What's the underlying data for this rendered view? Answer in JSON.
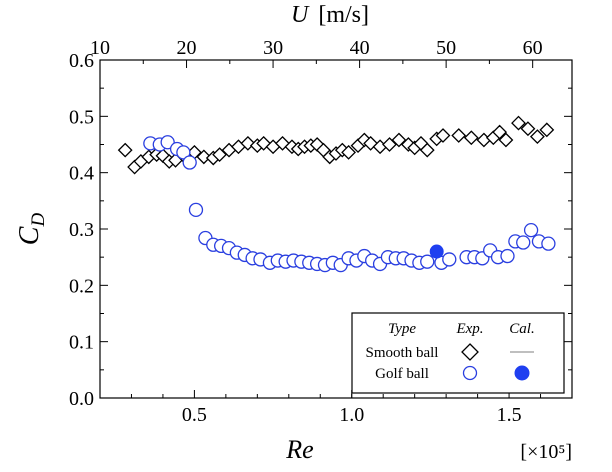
{
  "chart_data": {
    "type": "scatter",
    "xlabel": "Re",
    "x_multiplier_label": "[×10⁵]",
    "ylabel_main": "C",
    "ylabel_sub": "D",
    "top_axis_label_var": "U",
    "top_axis_label_unit": "[m/s]",
    "xlim": [
      0.2,
      1.7
    ],
    "ylim": [
      0.0,
      0.6
    ],
    "x_ticks": [
      "0.5",
      "1.0",
      "1.5"
    ],
    "x_tick_values": [
      0.5,
      1.0,
      1.5
    ],
    "y_ticks": [
      "0.0",
      "0.1",
      "0.2",
      "0.3",
      "0.4",
      "0.5",
      "0.6"
    ],
    "y_tick_values": [
      0.0,
      0.1,
      0.2,
      0.3,
      0.4,
      0.5,
      0.6
    ],
    "top_ticks": [
      "10",
      "20",
      "30",
      "40",
      "50",
      "60"
    ],
    "top_tick_positions_re": [
      0.2,
      0.475,
      0.75,
      1.025,
      1.3,
      1.575
    ],
    "grid": false,
    "legend": {
      "placement": "bottom-right",
      "header_type": "Type",
      "header_exp": "Exp.",
      "header_cal": "Cal.",
      "rows": [
        "Smooth ball",
        "Golf ball"
      ]
    },
    "series": [
      {
        "name": "Smooth ball",
        "kind": "experimental",
        "marker": "diamond-open",
        "color": "#000000",
        "points": [
          [
            0.28,
            0.44
          ],
          [
            0.31,
            0.41
          ],
          [
            0.33,
            0.42
          ],
          [
            0.355,
            0.428
          ],
          [
            0.38,
            0.432
          ],
          [
            0.4,
            0.43
          ],
          [
            0.42,
            0.42
          ],
          [
            0.44,
            0.422
          ],
          [
            0.47,
            0.428
          ],
          [
            0.5,
            0.436
          ],
          [
            0.53,
            0.428
          ],
          [
            0.56,
            0.426
          ],
          [
            0.58,
            0.432
          ],
          [
            0.61,
            0.44
          ],
          [
            0.64,
            0.446
          ],
          [
            0.67,
            0.452
          ],
          [
            0.7,
            0.448
          ],
          [
            0.72,
            0.452
          ],
          [
            0.75,
            0.446
          ],
          [
            0.78,
            0.452
          ],
          [
            0.81,
            0.446
          ],
          [
            0.83,
            0.442
          ],
          [
            0.85,
            0.446
          ],
          [
            0.87,
            0.448
          ],
          [
            0.89,
            0.45
          ],
          [
            0.91,
            0.44
          ],
          [
            0.93,
            0.428
          ],
          [
            0.95,
            0.434
          ],
          [
            0.97,
            0.44
          ],
          [
            0.99,
            0.436
          ],
          [
            1.02,
            0.448
          ],
          [
            1.04,
            0.458
          ],
          [
            1.06,
            0.452
          ],
          [
            1.09,
            0.446
          ],
          [
            1.12,
            0.45
          ],
          [
            1.15,
            0.458
          ],
          [
            1.18,
            0.45
          ],
          [
            1.2,
            0.444
          ],
          [
            1.22,
            0.452
          ],
          [
            1.24,
            0.44
          ],
          [
            1.27,
            0.46
          ],
          [
            1.29,
            0.466
          ],
          [
            1.34,
            0.466
          ],
          [
            1.38,
            0.462
          ],
          [
            1.42,
            0.458
          ],
          [
            1.45,
            0.462
          ],
          [
            1.47,
            0.472
          ],
          [
            1.49,
            0.458
          ],
          [
            1.53,
            0.488
          ],
          [
            1.56,
            0.478
          ],
          [
            1.59,
            0.464
          ],
          [
            1.62,
            0.476
          ]
        ]
      },
      {
        "name": "Golf ball",
        "kind": "experimental",
        "marker": "circle-open",
        "color": "#2a3fe0",
        "points": [
          [
            0.36,
            0.452
          ],
          [
            0.39,
            0.45
          ],
          [
            0.415,
            0.454
          ],
          [
            0.445,
            0.442
          ],
          [
            0.465,
            0.436
          ],
          [
            0.485,
            0.418
          ],
          [
            0.505,
            0.334
          ],
          [
            0.535,
            0.284
          ],
          [
            0.56,
            0.272
          ],
          [
            0.585,
            0.27
          ],
          [
            0.61,
            0.266
          ],
          [
            0.635,
            0.258
          ],
          [
            0.66,
            0.254
          ],
          [
            0.685,
            0.248
          ],
          [
            0.71,
            0.246
          ],
          [
            0.74,
            0.24
          ],
          [
            0.765,
            0.244
          ],
          [
            0.79,
            0.242
          ],
          [
            0.815,
            0.244
          ],
          [
            0.84,
            0.242
          ],
          [
            0.865,
            0.24
          ],
          [
            0.89,
            0.238
          ],
          [
            0.915,
            0.236
          ],
          [
            0.94,
            0.24
          ],
          [
            0.965,
            0.236
          ],
          [
            0.99,
            0.248
          ],
          [
            1.015,
            0.244
          ],
          [
            1.04,
            0.252
          ],
          [
            1.065,
            0.244
          ],
          [
            1.09,
            0.238
          ],
          [
            1.115,
            0.25
          ],
          [
            1.14,
            0.248
          ],
          [
            1.165,
            0.248
          ],
          [
            1.19,
            0.244
          ],
          [
            1.215,
            0.24
          ],
          [
            1.24,
            0.242
          ],
          [
            1.285,
            0.24
          ],
          [
            1.31,
            0.246
          ],
          [
            1.365,
            0.25
          ],
          [
            1.39,
            0.25
          ],
          [
            1.415,
            0.248
          ],
          [
            1.44,
            0.262
          ],
          [
            1.465,
            0.25
          ],
          [
            1.495,
            0.252
          ],
          [
            1.52,
            0.278
          ],
          [
            1.545,
            0.276
          ],
          [
            1.57,
            0.298
          ],
          [
            1.595,
            0.278
          ],
          [
            1.625,
            0.274
          ]
        ]
      },
      {
        "name": "Golf ball",
        "kind": "calculated",
        "marker": "circle-filled",
        "color": "#1f3ff0",
        "points": [
          [
            1.27,
            0.26
          ]
        ]
      }
    ]
  }
}
